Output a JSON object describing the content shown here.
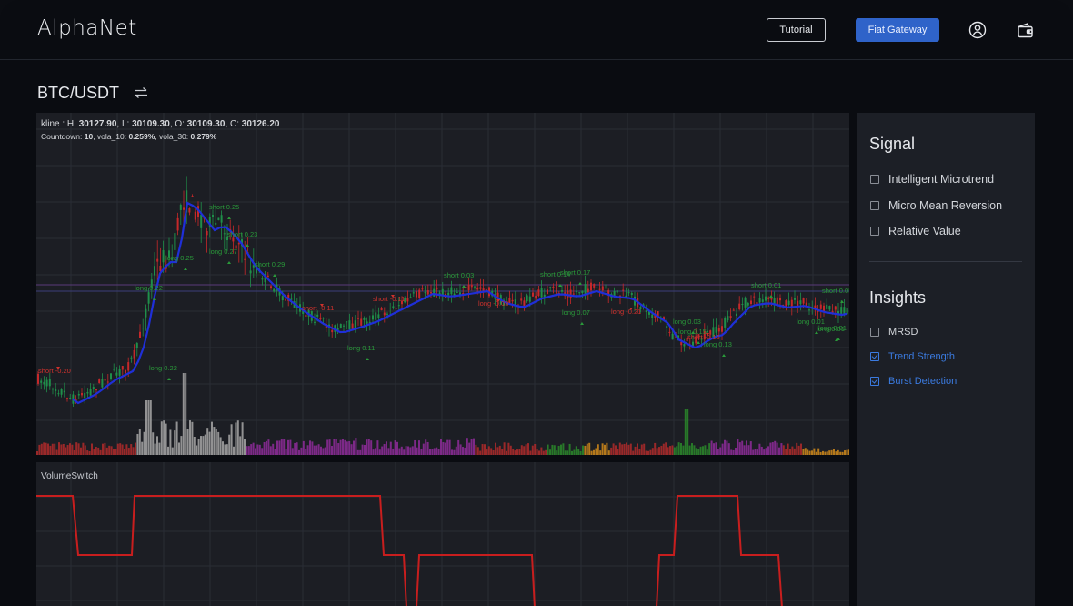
{
  "header": {
    "logo": "AlphaNet",
    "tutorial_label": "Tutorial",
    "fiat_label": "Fiat Gateway",
    "icons": [
      "user-circle-icon",
      "wallet-icon"
    ]
  },
  "pair": {
    "label": "BTC/USDT",
    "icon": "swap-arrows-icon"
  },
  "chart": {
    "kline": {
      "prefix": "kline : ",
      "H_label": "H: ",
      "H": "30127.90",
      "L_label": ", L: ",
      "L": "30109.30",
      "O_label": ", O: ",
      "O": "30109.30",
      "C_label": ", C: ",
      "C": "30126.20"
    },
    "stats": {
      "countdown_label": "Countdown: ",
      "countdown": "10",
      "vola10_label": ", vola_10: ",
      "vola10": "0.259%",
      "vola30_label": ", vola_30: ",
      "vola30": "0.279%"
    },
    "signals": [
      {
        "text": "short -0.20",
        "color": "#d0322d"
      },
      {
        "text": "long 0.22",
        "color": "#2a9a3a"
      },
      {
        "text": "long 0.22",
        "color": "#2a9a3a"
      },
      {
        "text": "long 0.25",
        "color": "#2a9a3a"
      },
      {
        "text": "short 0.25",
        "color": "#2a9a3a"
      },
      {
        "text": "short 0.23",
        "color": "#2a9a3a"
      },
      {
        "text": "long 0.27",
        "color": "#2a9a3a"
      },
      {
        "text": "short 0.29",
        "color": "#2a9a3a"
      },
      {
        "text": "short -0.11",
        "color": "#d0322d"
      },
      {
        "text": "long 0.11",
        "color": "#2a9a3a"
      },
      {
        "text": "short -0.11",
        "color": "#d0322d"
      },
      {
        "text": "short 0.03",
        "color": "#2a9a3a"
      },
      {
        "text": "long -0.03",
        "color": "#d0322d"
      },
      {
        "text": "short 0.14",
        "color": "#2a9a3a"
      },
      {
        "text": "short 0.17",
        "color": "#2a9a3a"
      },
      {
        "text": "long 0.07",
        "color": "#2a9a3a"
      },
      {
        "text": "long -0.21",
        "color": "#d0322d"
      },
      {
        "text": "long 0.03",
        "color": "#2a9a3a"
      },
      {
        "text": "long 0.15",
        "color": "#2a9a3a"
      },
      {
        "text": "short -0.15",
        "color": "#d0322d"
      },
      {
        "text": "long 0.13",
        "color": "#2a9a3a"
      },
      {
        "text": "short 0.01",
        "color": "#2a9a3a"
      },
      {
        "text": "short 0.05",
        "color": "#2a9a3a"
      },
      {
        "text": "long 0.01",
        "color": "#2a9a3a"
      },
      {
        "text": "long 0.01",
        "color": "#2a9a3a"
      },
      {
        "text": "long 0.01",
        "color": "#2a9a3a"
      }
    ]
  },
  "subchart": {
    "title": "VolumeSwitch"
  },
  "panel": {
    "signal_title": "Signal",
    "signals": [
      {
        "label": "Intelligent Microtrend",
        "checked": false
      },
      {
        "label": "Micro Mean Reversion",
        "checked": false
      },
      {
        "label": "Relative Value",
        "checked": false
      }
    ],
    "insights_title": "Insights",
    "insights": [
      {
        "label": "MRSD",
        "checked": false
      },
      {
        "label": "Trend Strength",
        "checked": true
      },
      {
        "label": "Burst Detection",
        "checked": true
      }
    ]
  },
  "colors": {
    "accent": "#2f63c9",
    "checked": "#3b7be0",
    "ma_line": "#1f2fd8",
    "switch_line": "#c81e1e",
    "candle_up": "#1f8f4a",
    "candle_down": "#c6282a"
  }
}
